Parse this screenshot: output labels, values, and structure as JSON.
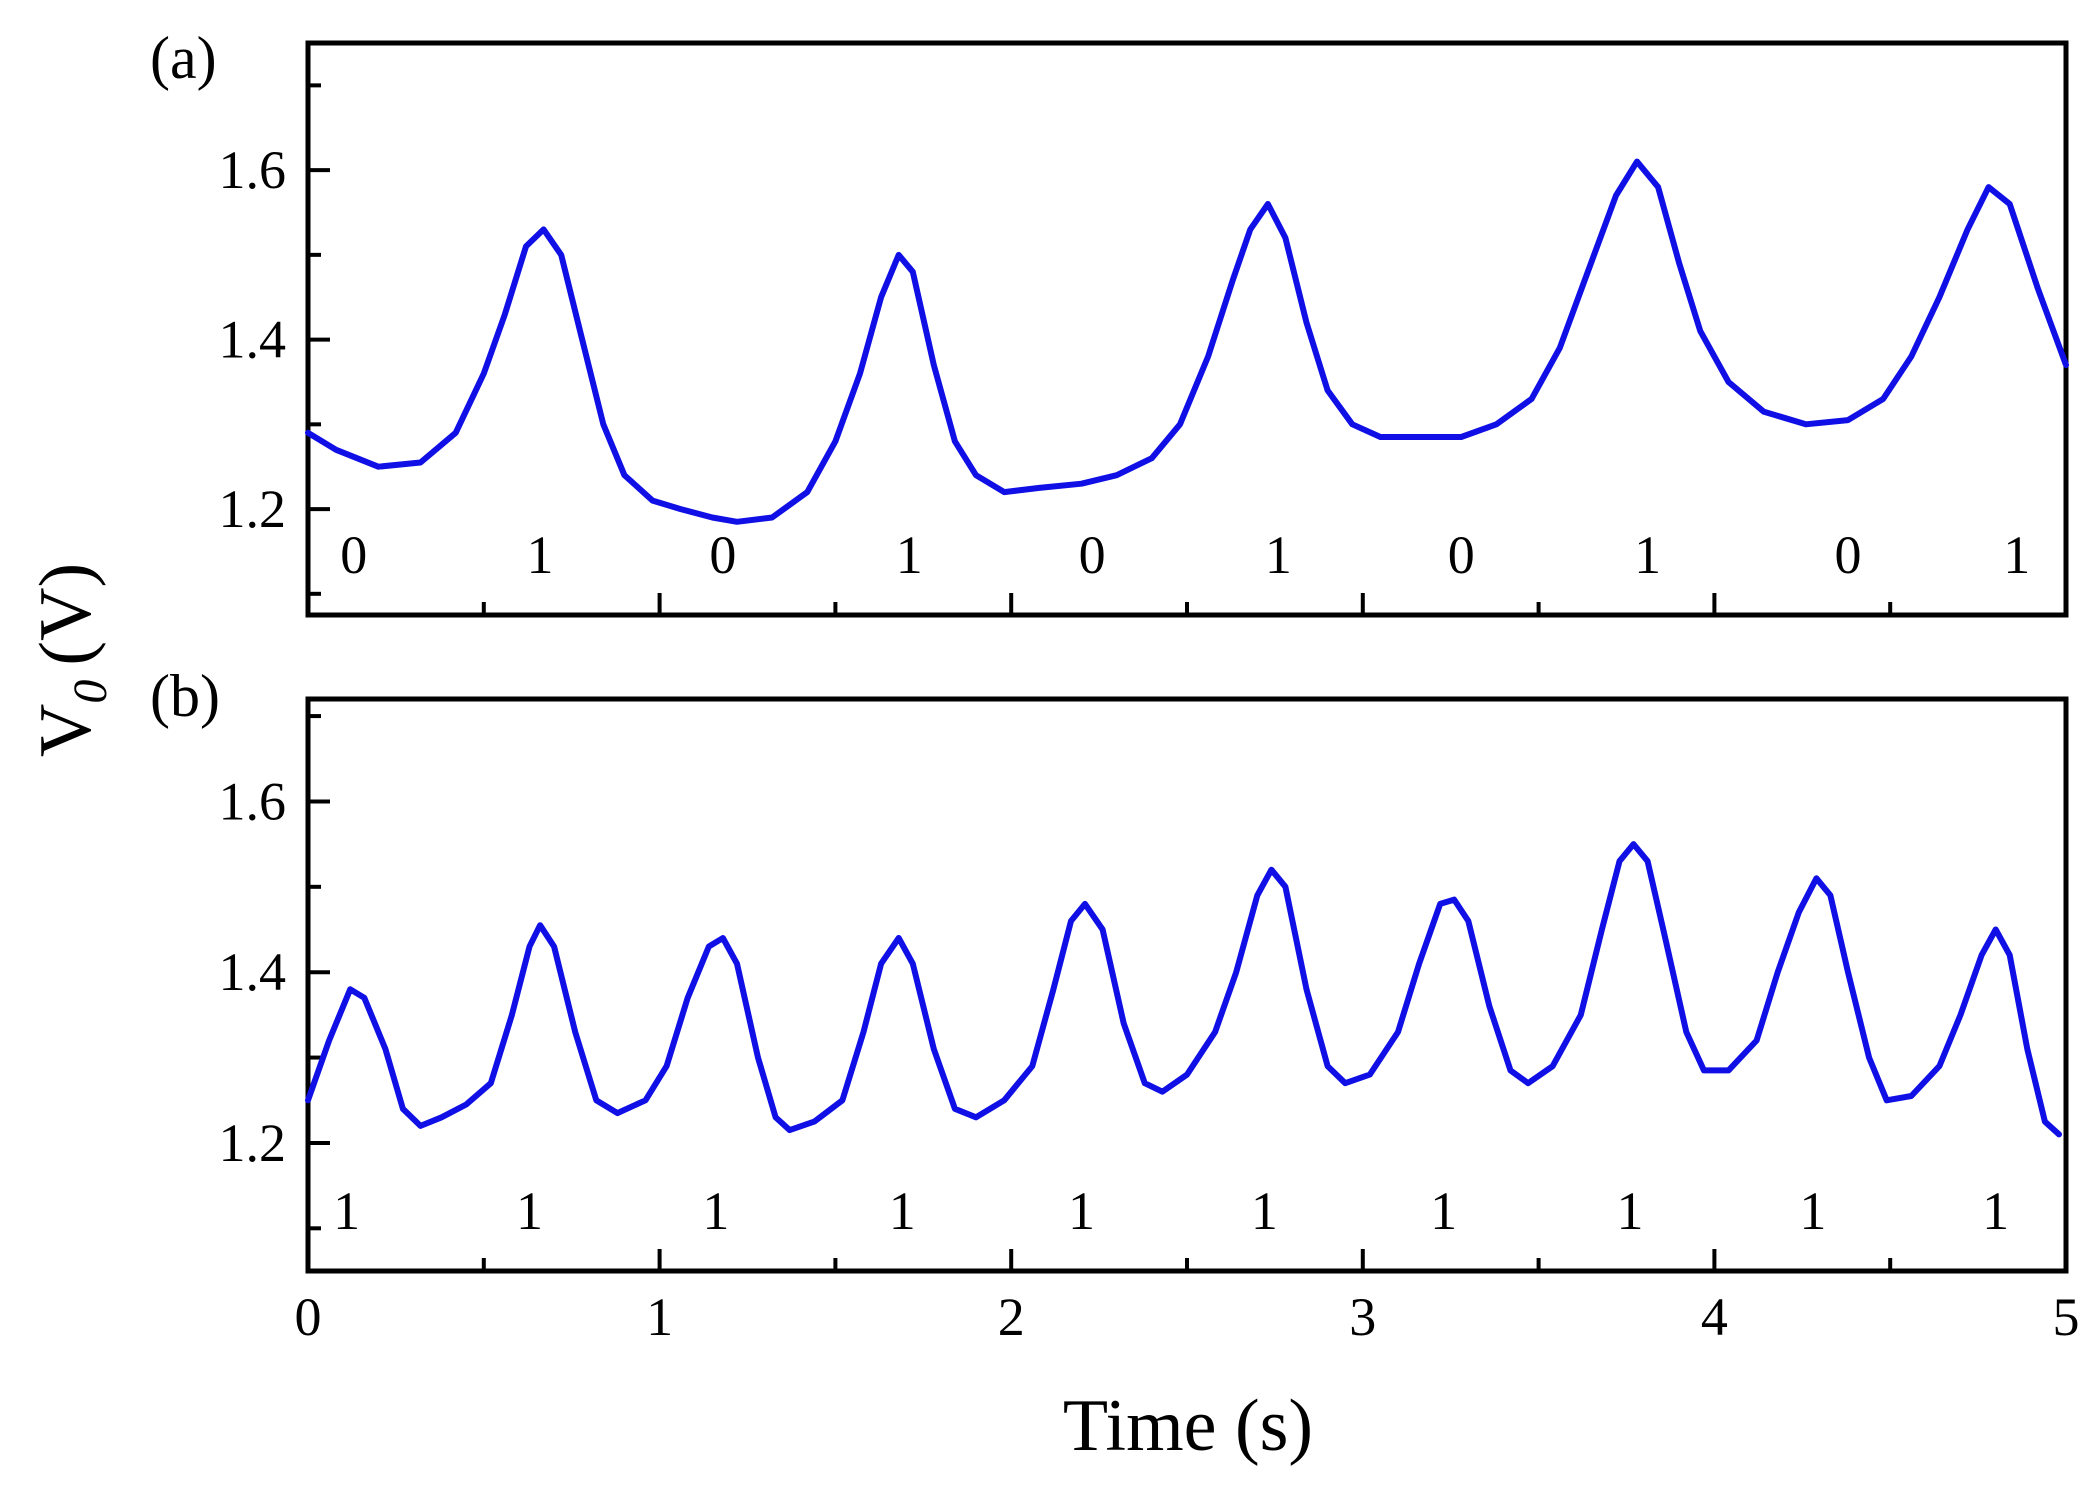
{
  "chart_data": [
    {
      "type": "line",
      "panel_label": "(a)",
      "xlim": [
        0,
        5
      ],
      "ylim": [
        1.075,
        1.75
      ],
      "yticks": [
        1.2,
        1.4,
        1.6
      ],
      "ytick_labels": [
        "1.2",
        "1.4",
        "1.6"
      ],
      "series": [
        {
          "color": "#1010e6",
          "points": [
            [
              0,
              1.29
            ],
            [
              0.08,
              1.27
            ],
            [
              0.2,
              1.25
            ],
            [
              0.32,
              1.255
            ],
            [
              0.42,
              1.29
            ],
            [
              0.5,
              1.36
            ],
            [
              0.56,
              1.43
            ],
            [
              0.62,
              1.51
            ],
            [
              0.67,
              1.53
            ],
            [
              0.72,
              1.5
            ],
            [
              0.78,
              1.4
            ],
            [
              0.84,
              1.3
            ],
            [
              0.9,
              1.24
            ],
            [
              0.98,
              1.21
            ],
            [
              1.06,
              1.2
            ],
            [
              1.15,
              1.19
            ],
            [
              1.22,
              1.185
            ],
            [
              1.32,
              1.19
            ],
            [
              1.42,
              1.22
            ],
            [
              1.5,
              1.28
            ],
            [
              1.57,
              1.36
            ],
            [
              1.63,
              1.45
            ],
            [
              1.68,
              1.5
            ],
            [
              1.72,
              1.48
            ],
            [
              1.78,
              1.37
            ],
            [
              1.84,
              1.28
            ],
            [
              1.9,
              1.24
            ],
            [
              1.98,
              1.22
            ],
            [
              2.08,
              1.225
            ],
            [
              2.2,
              1.23
            ],
            [
              2.3,
              1.24
            ],
            [
              2.4,
              1.26
            ],
            [
              2.48,
              1.3
            ],
            [
              2.56,
              1.38
            ],
            [
              2.63,
              1.47
            ],
            [
              2.68,
              1.53
            ],
            [
              2.73,
              1.56
            ],
            [
              2.78,
              1.52
            ],
            [
              2.84,
              1.42
            ],
            [
              2.9,
              1.34
            ],
            [
              2.97,
              1.3
            ],
            [
              3.05,
              1.285
            ],
            [
              3.15,
              1.285
            ],
            [
              3.28,
              1.285
            ],
            [
              3.38,
              1.3
            ],
            [
              3.48,
              1.33
            ],
            [
              3.56,
              1.39
            ],
            [
              3.64,
              1.48
            ],
            [
              3.72,
              1.57
            ],
            [
              3.78,
              1.61
            ],
            [
              3.84,
              1.58
            ],
            [
              3.9,
              1.49
            ],
            [
              3.96,
              1.41
            ],
            [
              4.04,
              1.35
            ],
            [
              4.14,
              1.315
            ],
            [
              4.26,
              1.3
            ],
            [
              4.38,
              1.305
            ],
            [
              4.48,
              1.33
            ],
            [
              4.56,
              1.38
            ],
            [
              4.64,
              1.45
            ],
            [
              4.72,
              1.53
            ],
            [
              4.78,
              1.58
            ],
            [
              4.84,
              1.56
            ],
            [
              4.92,
              1.46
            ],
            [
              5.0,
              1.37
            ]
          ]
        }
      ],
      "bit_labels": [
        {
          "x": 0.13,
          "text": "0"
        },
        {
          "x": 0.66,
          "text": "1"
        },
        {
          "x": 1.18,
          "text": "0"
        },
        {
          "x": 1.71,
          "text": "1"
        },
        {
          "x": 2.23,
          "text": "0"
        },
        {
          "x": 2.76,
          "text": "1"
        },
        {
          "x": 3.28,
          "text": "0"
        },
        {
          "x": 3.81,
          "text": "1"
        },
        {
          "x": 4.38,
          "text": "0"
        },
        {
          "x": 4.86,
          "text": "1"
        }
      ]
    },
    {
      "type": "line",
      "panel_label": "(b)",
      "xlim": [
        0,
        5
      ],
      "ylim": [
        1.05,
        1.72
      ],
      "xticks": [
        0,
        1,
        2,
        3,
        4,
        5
      ],
      "xtick_labels": [
        "0",
        "1",
        "2",
        "3",
        "4",
        "5"
      ],
      "yticks": [
        1.2,
        1.4,
        1.6
      ],
      "ytick_labels": [
        "1.2",
        "1.4",
        "1.6"
      ],
      "series": [
        {
          "color": "#1010e6",
          "points": [
            [
              0,
              1.25
            ],
            [
              0.06,
              1.32
            ],
            [
              0.12,
              1.38
            ],
            [
              0.16,
              1.37
            ],
            [
              0.22,
              1.31
            ],
            [
              0.27,
              1.24
            ],
            [
              0.32,
              1.22
            ],
            [
              0.38,
              1.23
            ],
            [
              0.45,
              1.245
            ],
            [
              0.52,
              1.27
            ],
            [
              0.58,
              1.35
            ],
            [
              0.63,
              1.43
            ],
            [
              0.66,
              1.455
            ],
            [
              0.7,
              1.43
            ],
            [
              0.76,
              1.33
            ],
            [
              0.82,
              1.25
            ],
            [
              0.88,
              1.235
            ],
            [
              0.96,
              1.25
            ],
            [
              1.02,
              1.29
            ],
            [
              1.08,
              1.37
            ],
            [
              1.14,
              1.43
            ],
            [
              1.18,
              1.44
            ],
            [
              1.22,
              1.41
            ],
            [
              1.28,
              1.3
            ],
            [
              1.33,
              1.23
            ],
            [
              1.37,
              1.215
            ],
            [
              1.44,
              1.225
            ],
            [
              1.52,
              1.25
            ],
            [
              1.58,
              1.33
            ],
            [
              1.63,
              1.41
            ],
            [
              1.68,
              1.44
            ],
            [
              1.72,
              1.41
            ],
            [
              1.78,
              1.31
            ],
            [
              1.84,
              1.24
            ],
            [
              1.9,
              1.23
            ],
            [
              1.98,
              1.25
            ],
            [
              2.06,
              1.29
            ],
            [
              2.12,
              1.38
            ],
            [
              2.17,
              1.46
            ],
            [
              2.21,
              1.48
            ],
            [
              2.26,
              1.45
            ],
            [
              2.32,
              1.34
            ],
            [
              2.38,
              1.27
            ],
            [
              2.43,
              1.26
            ],
            [
              2.5,
              1.28
            ],
            [
              2.58,
              1.33
            ],
            [
              2.64,
              1.4
            ],
            [
              2.7,
              1.49
            ],
            [
              2.74,
              1.52
            ],
            [
              2.78,
              1.5
            ],
            [
              2.84,
              1.38
            ],
            [
              2.9,
              1.29
            ],
            [
              2.95,
              1.27
            ],
            [
              3.02,
              1.28
            ],
            [
              3.1,
              1.33
            ],
            [
              3.16,
              1.41
            ],
            [
              3.22,
              1.48
            ],
            [
              3.26,
              1.485
            ],
            [
              3.3,
              1.46
            ],
            [
              3.36,
              1.36
            ],
            [
              3.42,
              1.285
            ],
            [
              3.47,
              1.27
            ],
            [
              3.54,
              1.29
            ],
            [
              3.62,
              1.35
            ],
            [
              3.68,
              1.45
            ],
            [
              3.73,
              1.53
            ],
            [
              3.77,
              1.55
            ],
            [
              3.81,
              1.53
            ],
            [
              3.86,
              1.44
            ],
            [
              3.92,
              1.33
            ],
            [
              3.97,
              1.285
            ],
            [
              4.04,
              1.285
            ],
            [
              4.12,
              1.32
            ],
            [
              4.18,
              1.4
            ],
            [
              4.24,
              1.47
            ],
            [
              4.29,
              1.51
            ],
            [
              4.33,
              1.49
            ],
            [
              4.38,
              1.4
            ],
            [
              4.44,
              1.3
            ],
            [
              4.49,
              1.25
            ],
            [
              4.56,
              1.255
            ],
            [
              4.64,
              1.29
            ],
            [
              4.7,
              1.35
            ],
            [
              4.76,
              1.42
            ],
            [
              4.8,
              1.45
            ],
            [
              4.84,
              1.42
            ],
            [
              4.89,
              1.31
            ],
            [
              4.94,
              1.225
            ],
            [
              4.98,
              1.21
            ]
          ]
        }
      ],
      "bit_labels": [
        {
          "x": 0.11,
          "text": "1"
        },
        {
          "x": 0.63,
          "text": "1"
        },
        {
          "x": 1.16,
          "text": "1"
        },
        {
          "x": 1.69,
          "text": "1"
        },
        {
          "x": 2.2,
          "text": "1"
        },
        {
          "x": 2.72,
          "text": "1"
        },
        {
          "x": 3.23,
          "text": "1"
        },
        {
          "x": 3.76,
          "text": "1"
        },
        {
          "x": 4.28,
          "text": "1"
        },
        {
          "x": 4.8,
          "text": "1"
        }
      ]
    }
  ],
  "axes": {
    "xlabel": "Time (s)",
    "ylabel_main": "V",
    "ylabel_sub": "0",
    "ylabel_unit": "(V)"
  }
}
